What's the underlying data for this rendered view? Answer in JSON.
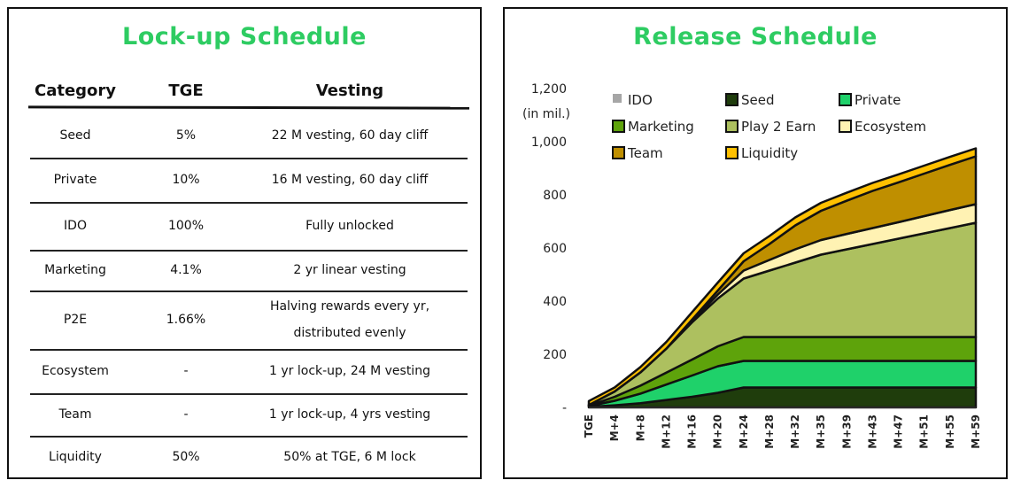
{
  "lockup": {
    "title": "Lock-up Schedule",
    "headers": {
      "category": "Category",
      "tge": "TGE",
      "vesting": "Vesting"
    },
    "rows": [
      {
        "category": "Seed",
        "tge": "5%",
        "vesting": [
          "22 M vesting, 60 day cliff"
        ]
      },
      {
        "category": "Private",
        "tge": "10%",
        "vesting": [
          "16 M vesting, 60 day cliff"
        ]
      },
      {
        "category": "IDO",
        "tge": "100%",
        "vesting": [
          "Fully unlocked"
        ]
      },
      {
        "category": "Marketing",
        "tge": "4.1%",
        "vesting": [
          "2 yr linear vesting"
        ]
      },
      {
        "category": "P2E",
        "tge": "1.66%",
        "vesting": [
          "Halving rewards every yr,",
          "distributed evenly"
        ]
      },
      {
        "category": "Ecosystem",
        "tge": "-",
        "vesting": [
          "1 yr lock-up, 24 M vesting"
        ]
      },
      {
        "category": "Team",
        "tge": "-",
        "vesting": [
          "1 yr lock-up, 4 yrs vesting"
        ]
      },
      {
        "category": "Liquidity",
        "tge": "50%",
        "vesting": [
          "50% at TGE, 6 M lock"
        ]
      }
    ]
  },
  "chart_data": {
    "type": "area",
    "title": "Release Schedule",
    "unit_label": "(in mil.)",
    "ylim": [
      0,
      1200
    ],
    "y_ticks": [
      "-",
      "200",
      "400",
      "600",
      "800",
      "1,000",
      "1,200"
    ],
    "y_tick_values": [
      0,
      200,
      400,
      600,
      800,
      1000,
      1200
    ],
    "x_ticks": [
      "TGE",
      "M+4",
      "M+8",
      "M+12",
      "M+16",
      "M+20",
      "M+24",
      "M+28",
      "M+32",
      "M+35",
      "M+39",
      "M+43",
      "M+47",
      "M+51",
      "M+55",
      "M+59"
    ],
    "x": [
      "TGE",
      "M+4",
      "M+8",
      "M+12",
      "M+16",
      "M+20",
      "M+24",
      "M+28",
      "M+32",
      "M+35",
      "M+39",
      "M+43",
      "M+47",
      "M+51",
      "M+55",
      "M+59"
    ],
    "stacked": true,
    "legend": [
      {
        "name": "IDO",
        "color": "#a6a6a6"
      },
      {
        "name": "Seed",
        "color": "#1f3d0c"
      },
      {
        "name": "Private",
        "color": "#1fd16a"
      },
      {
        "name": "Marketing",
        "color": "#5ea30b"
      },
      {
        "name": "Play 2 Earn",
        "color": "#adc05f"
      },
      {
        "name": "Ecosystem",
        "color": "#fff2b3"
      },
      {
        "name": "Team",
        "color": "#bf8f00"
      },
      {
        "name": "Liquidity",
        "color": "#ffc000"
      }
    ],
    "series": [
      {
        "name": "Seed",
        "color": "#1f3d0c",
        "values": [
          2,
          8,
          16,
          28,
          40,
          55,
          75,
          75,
          75,
          75,
          75,
          75,
          75,
          75,
          75,
          75
        ]
      },
      {
        "name": "Private",
        "color": "#1fd16a",
        "values": [
          3,
          17,
          36,
          58,
          80,
          100,
          100,
          100,
          100,
          100,
          100,
          100,
          100,
          100,
          100,
          100
        ]
      },
      {
        "name": "Marketing",
        "color": "#5ea30b",
        "values": [
          1,
          15,
          30,
          45,
          60,
          75,
          90,
          90,
          90,
          90,
          90,
          90,
          90,
          90,
          90,
          90
        ]
      },
      {
        "name": "Play 2 Earn",
        "color": "#adc05f",
        "values": [
          3,
          20,
          50,
          90,
          140,
          180,
          220,
          250,
          280,
          310,
          330,
          350,
          370,
          390,
          410,
          430
        ]
      },
      {
        "name": "Ecosystem",
        "color": "#fff2b3",
        "values": [
          0,
          0,
          0,
          0,
          5,
          15,
          30,
          40,
          50,
          55,
          58,
          60,
          62,
          65,
          68,
          70
        ]
      },
      {
        "name": "Team",
        "color": "#bf8f00",
        "values": [
          0,
          0,
          0,
          0,
          5,
          15,
          35,
          60,
          90,
          110,
          125,
          140,
          150,
          160,
          170,
          180
        ]
      },
      {
        "name": "Liquidity",
        "color": "#ffc000",
        "values": [
          15,
          15,
          20,
          25,
          28,
          30,
          30,
          30,
          30,
          30,
          30,
          30,
          30,
          30,
          30,
          30
        ]
      }
    ]
  }
}
